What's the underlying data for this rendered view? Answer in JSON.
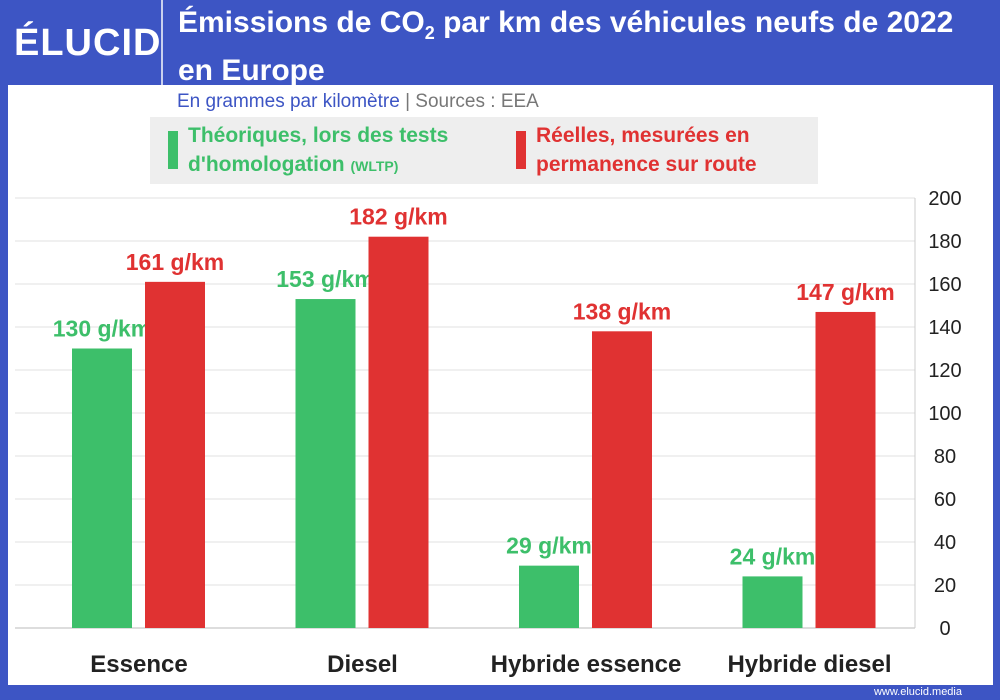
{
  "header": {
    "logo": "ÉLUCID",
    "title_part1": "Émissions de CO",
    "title_sub": "2",
    "title_part2": " par km des véhicules neufs de 2022 en Europe"
  },
  "subtitle": {
    "unit": "En grammes par kilomètre",
    "separator": "|",
    "source": "Sources : EEA"
  },
  "legend": {
    "green_line1": "Théoriques, lors des tests",
    "green_line2": "d'homologation",
    "green_small": "(WLTP)",
    "red_line1": "Réelles, mesurées en",
    "red_line2": "permanence sur route"
  },
  "footer": {
    "url": "www.elucid.media"
  },
  "colors": {
    "green": "#3dbf6a",
    "red": "#e03232",
    "brand": "#3d55c4"
  },
  "chart_data": {
    "type": "bar",
    "categories": [
      "Essence",
      "Diesel",
      "Hybride essence",
      "Hybride diesel"
    ],
    "series": [
      {
        "name": "Théoriques, lors des tests d'homologation (WLTP)",
        "values": [
          130,
          153,
          29,
          24
        ],
        "labels": [
          "130 g/km",
          "153 g/km",
          "29 g/km",
          "24 g/km"
        ]
      },
      {
        "name": "Réelles, mesurées en permanence sur route",
        "values": [
          161,
          182,
          138,
          147
        ],
        "labels": [
          "161 g/km",
          "182 g/km",
          "138 g/km",
          "147 g/km"
        ]
      }
    ],
    "ylim": [
      0,
      200
    ],
    "yticks": [
      0,
      20,
      40,
      60,
      80,
      100,
      120,
      140,
      160,
      180,
      200
    ],
    "y_axis_position": "right",
    "grid": true,
    "legend_position": "top"
  }
}
